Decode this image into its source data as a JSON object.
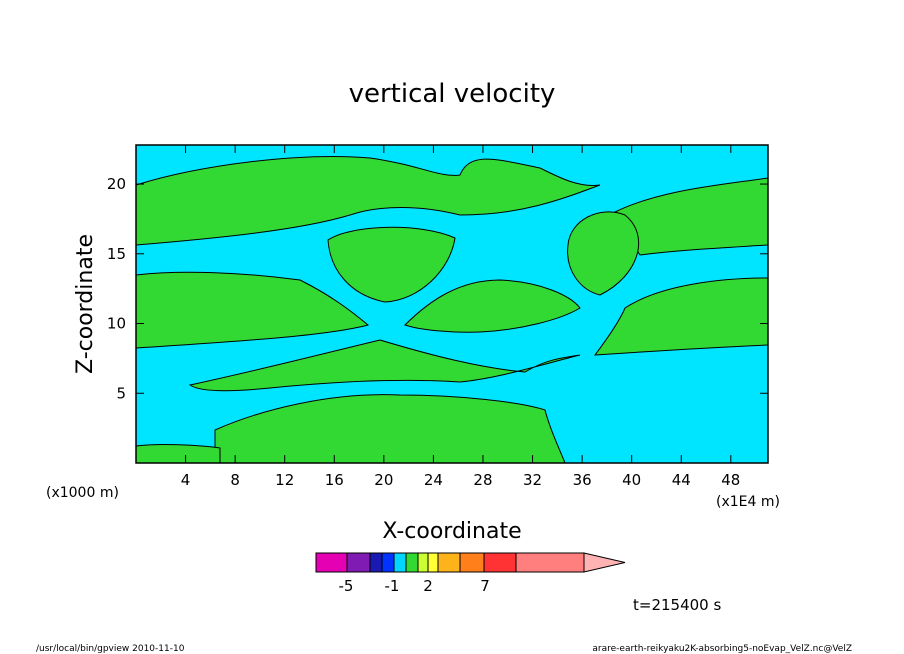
{
  "chart_data": {
    "type": "heatmap",
    "title": "vertical velocity",
    "xlabel": "X-coordinate",
    "ylabel": "Z-coordinate",
    "x_units_left": "(x1000 m)",
    "x_units_right": "(x1E4 m)",
    "xlim": [
      0,
      51
    ],
    "ylim": [
      0,
      22.8
    ],
    "x_ticks": [
      4,
      8,
      12,
      16,
      20,
      24,
      28,
      32,
      36,
      40,
      44,
      48
    ],
    "y_ticks": [
      5,
      10,
      15,
      20
    ],
    "fill_colors": {
      "negative_weak": "#00e5ff",
      "positive_weak": "#33d933",
      "contour_line": "#000000"
    },
    "colorbar": {
      "colors": [
        "#e600b3",
        "#7f1ab3",
        "#1a1ab3",
        "#0033ff",
        "#00d6ff",
        "#33d933",
        "#ccff33",
        "#ffff33",
        "#ffb31a",
        "#ff7f1a",
        "#ff3333",
        "#ff7f7f",
        "#ffb3b3"
      ],
      "labels": [
        "-5",
        "-1",
        "2",
        "7"
      ]
    },
    "time_label": "t=215400 s"
  },
  "footer": {
    "left": "/usr/local/bin/gpview  2010-11-10",
    "right": "arare-earth-reikyaku2K-absorbing5-noEvap_VelZ.nc@VelZ"
  }
}
